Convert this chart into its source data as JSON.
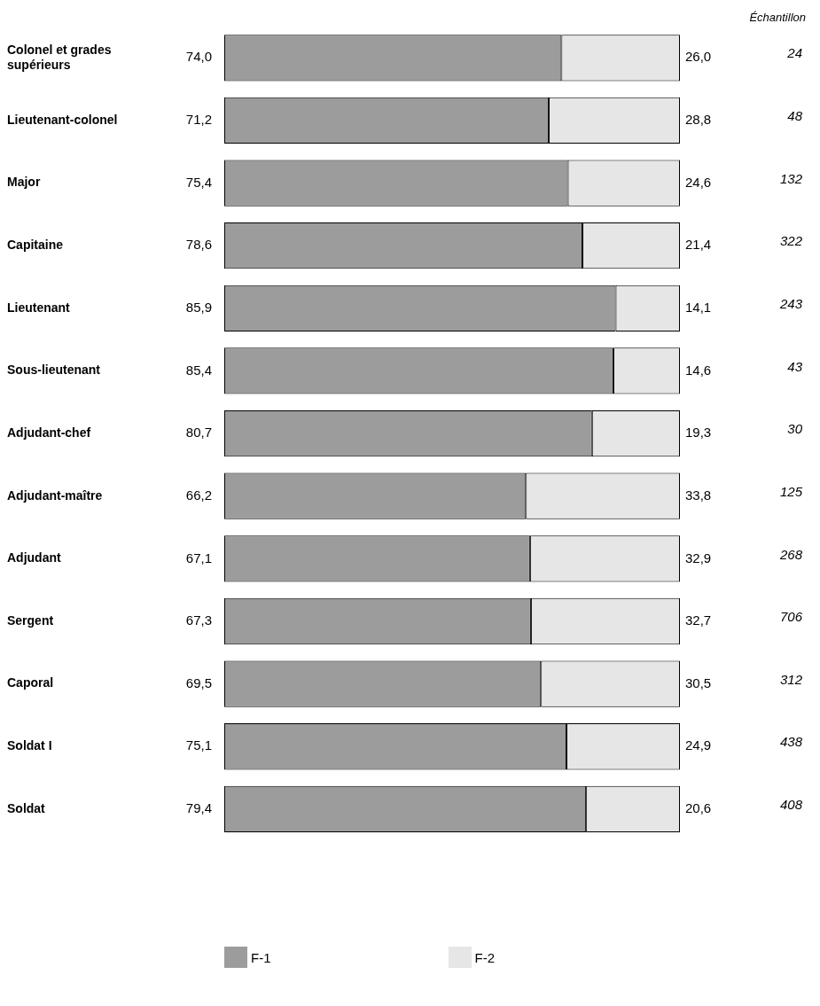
{
  "chart_data": {
    "type": "bar",
    "orientation": "horizontal",
    "stacked": true,
    "legend": "bottom",
    "tick_labels": "y",
    "categories": [
      "Colonel et grades supérieurs",
      "Lieutenant-colonel",
      "Major",
      "Capitaine",
      "Lieutenant",
      "Sous-lieutenant",
      "Adjudant-chef",
      "Adjudant-maître",
      "Adjudant",
      "Sergent",
      "Caporal",
      "Soldat I",
      "Soldat"
    ],
    "series": [
      {
        "name": "F-1",
        "color": "#9c9c9c",
        "values": [
          74.0,
          71.2,
          75.4,
          78.6,
          85.9,
          85.4,
          80.7,
          66.2,
          67.1,
          67.3,
          69.5,
          75.1,
          79.4
        ],
        "value_labels": [
          "74,0",
          "71,2",
          "75,4",
          "78,6",
          "85,9",
          "85,4",
          "80,7",
          "66,2",
          "67,1",
          "67,3",
          "69,5",
          "75,1",
          "79,4"
        ]
      },
      {
        "name": "F-2",
        "color": "#e6e6e6",
        "values": [
          26.0,
          28.8,
          24.6,
          21.4,
          14.1,
          14.6,
          19.3,
          33.8,
          32.9,
          32.7,
          30.5,
          24.9,
          20.6
        ],
        "value_labels": [
          "26,0",
          "28,8",
          "24,6",
          "21,4",
          "14,1",
          "14,6",
          "19,3",
          "33,8",
          "32,9",
          "32,7",
          "30,5",
          "24,9",
          "20,6"
        ]
      }
    ],
    "annotations": [
      "Échantillon",
      "24",
      "48",
      "132",
      "322",
      "243",
      "43",
      "30",
      "125",
      "268",
      "706",
      "312",
      "438",
      "408"
    ]
  }
}
